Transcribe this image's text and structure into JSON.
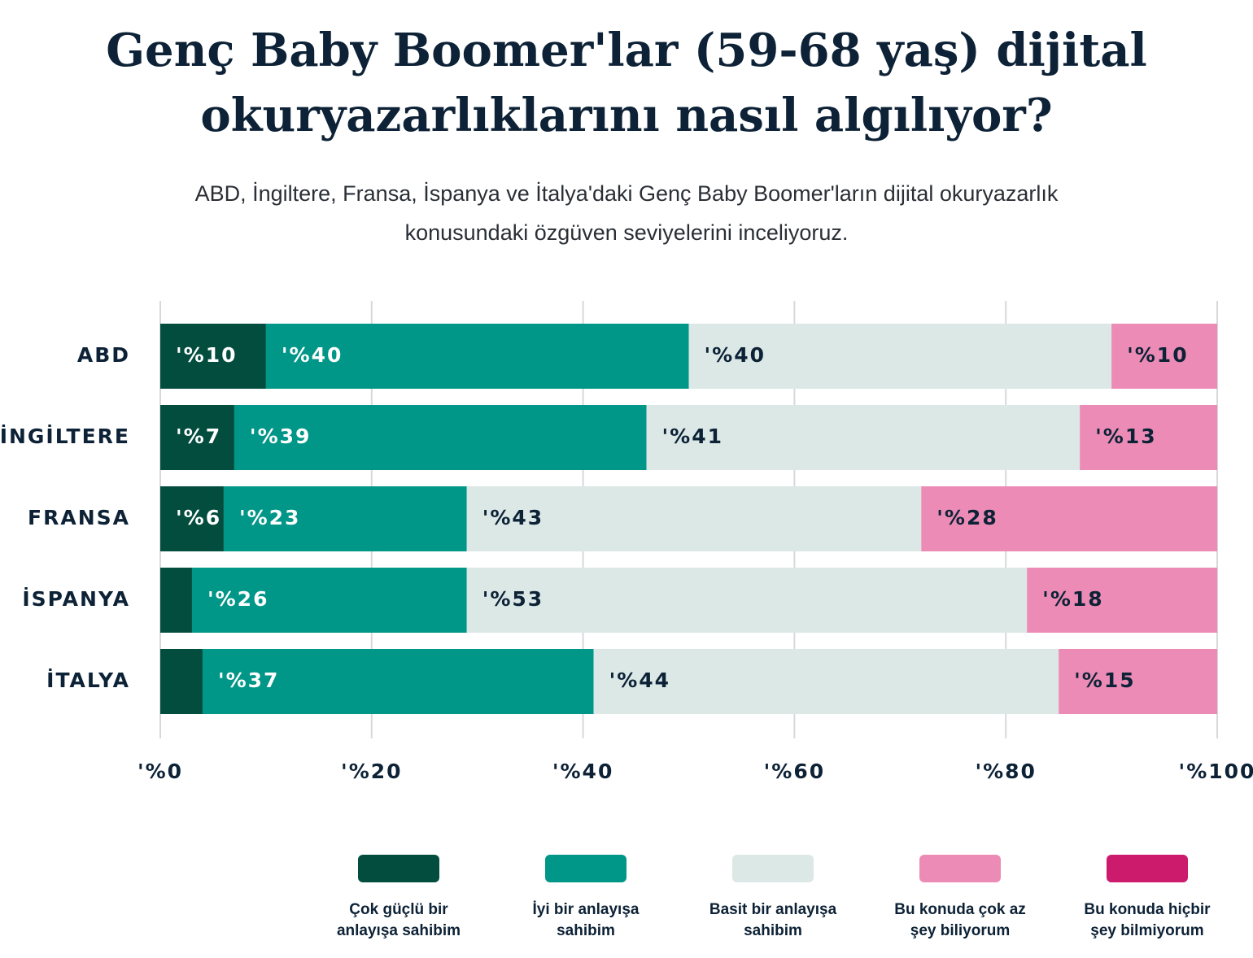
{
  "chart_data": {
    "type": "stacked_bar_horizontal",
    "title": "Genç Baby Boomer'lar (59-68 yaş) dijital okuryazarlıklarını nasıl algılıyor?",
    "subtitle": "ABD, İngiltere, Fransa, İspanya ve İtalya'daki Genç Baby Boomer'ların dijital okuryazarlık konusundaki özgüven seviyelerini inceliyoruz.",
    "categories": [
      "ABD",
      "İNGİLTERE",
      "FRANSA",
      "İSPANYA",
      "İTALYA"
    ],
    "series": [
      {
        "name": "Çok güçlü bir anlayışa sahibim",
        "color": "#034d3f",
        "values": [
          10,
          7,
          6,
          3,
          4
        ],
        "value_labels": [
          "'%10",
          "'%7",
          "'%6",
          null,
          null
        ]
      },
      {
        "name": "İyi bir anlayışa sahibim",
        "color": "#009688",
        "values": [
          40,
          39,
          23,
          26,
          37
        ],
        "value_labels": [
          "'%40",
          "'%39",
          "'%23",
          "'%26",
          "'%37"
        ]
      },
      {
        "name": "Basit bir anlayışa sahibim",
        "color": "#dbe8e6",
        "values": [
          40,
          41,
          43,
          53,
          44
        ],
        "value_labels": [
          "'%40",
          "'%41",
          "'%43",
          "'%53",
          "'%44"
        ]
      },
      {
        "name": "Bu konuda çok az şey biliyorum",
        "color": "#ec8cb6",
        "values": [
          10,
          13,
          28,
          18,
          15
        ],
        "value_labels": [
          "'%10",
          "'%13",
          "'%28",
          "'%18",
          "'%15"
        ]
      },
      {
        "name": "Bu konuda hiçbir şey bilmiyorum",
        "color": "#cc1a6c",
        "values": [
          0,
          0,
          0,
          0,
          0
        ],
        "value_labels": [
          null,
          null,
          null,
          null,
          null
        ]
      }
    ],
    "xlim": [
      0,
      100
    ],
    "xticks": [
      {
        "value": 0,
        "label": "'%0"
      },
      {
        "value": 20,
        "label": "'%20"
      },
      {
        "value": 40,
        "label": "'%40"
      },
      {
        "value": 60,
        "label": "'%60"
      },
      {
        "value": 80,
        "label": "'%80"
      },
      {
        "value": 100,
        "label": "'%100"
      }
    ],
    "grid": true,
    "legend": "bottom"
  }
}
